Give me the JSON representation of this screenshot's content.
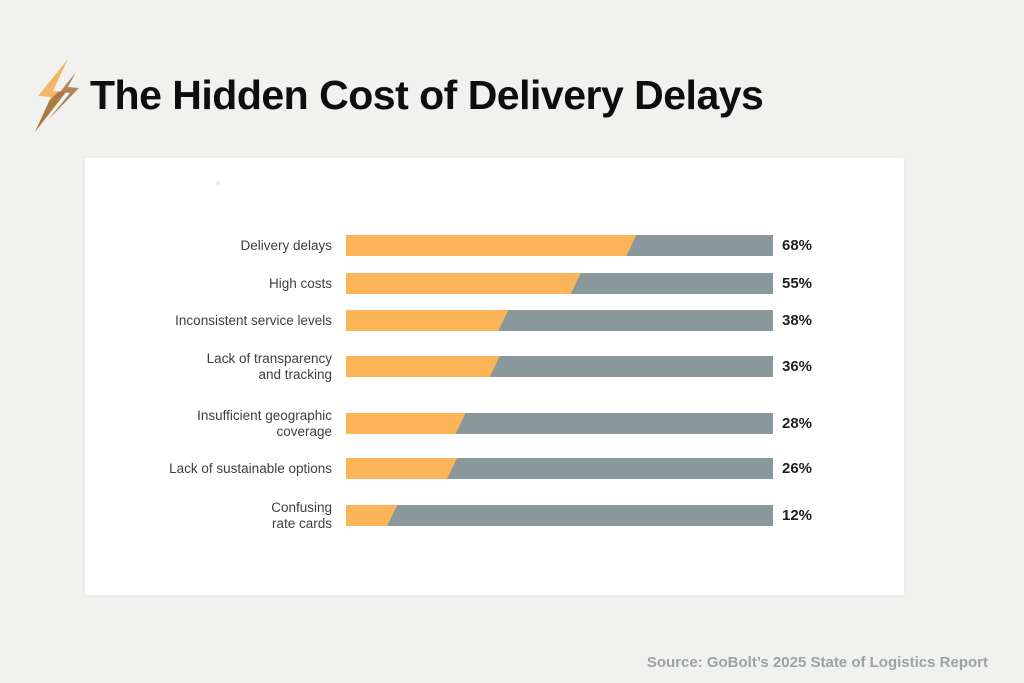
{
  "header": {
    "title": "The Hidden Cost of Delivery Delays",
    "icon": "lightning-bolt-icon"
  },
  "footer": {
    "source": "Source: GoBolt’s 2025 State of Logistics Report"
  },
  "colors": {
    "background": "#F1F1EF",
    "card": "#FFFFFF",
    "bar_fill": "#FBB457",
    "bar_track": "#8B989B",
    "title_text": "#0E0E0E",
    "label_text": "#3F3F3F",
    "pct_text": "#1F1F1F",
    "source_text": "#9BA3A5",
    "bolt_light": "#F3B569",
    "bolt_dark": "#AC7A41"
  },
  "chart_data": {
    "type": "bar",
    "orientation": "horizontal",
    "title": "The Hidden Cost of Delivery Delays",
    "xlabel": "",
    "ylabel": "",
    "unit": "%",
    "xlim": [
      0,
      100
    ],
    "grid": false,
    "legend": false,
    "categories": [
      "Delivery delays",
      "High costs",
      "Inconsistent service levels",
      "Lack of transparency and tracking",
      "Insufficient geographic coverage",
      "Lack of sustainable options",
      "Confusing rate cards"
    ],
    "values": [
      68,
      55,
      38,
      36,
      28,
      26,
      12
    ],
    "rows": [
      {
        "label": "Delivery delays",
        "value": 68,
        "value_label": "68%"
      },
      {
        "label": "High costs",
        "value": 55,
        "value_label": "55%"
      },
      {
        "label": "Inconsistent service levels",
        "value": 38,
        "value_label": "38%"
      },
      {
        "label": "Lack of transparency\nand tracking",
        "value": 36,
        "value_label": "36%"
      },
      {
        "label": "Insufficient geographic\ncoverage",
        "value": 28,
        "value_label": "28%"
      },
      {
        "label": "Lack of sustainable options",
        "value": 26,
        "value_label": "26%"
      },
      {
        "label": "Confusing\nrate cards",
        "value": 12,
        "value_label": "12%"
      }
    ]
  }
}
